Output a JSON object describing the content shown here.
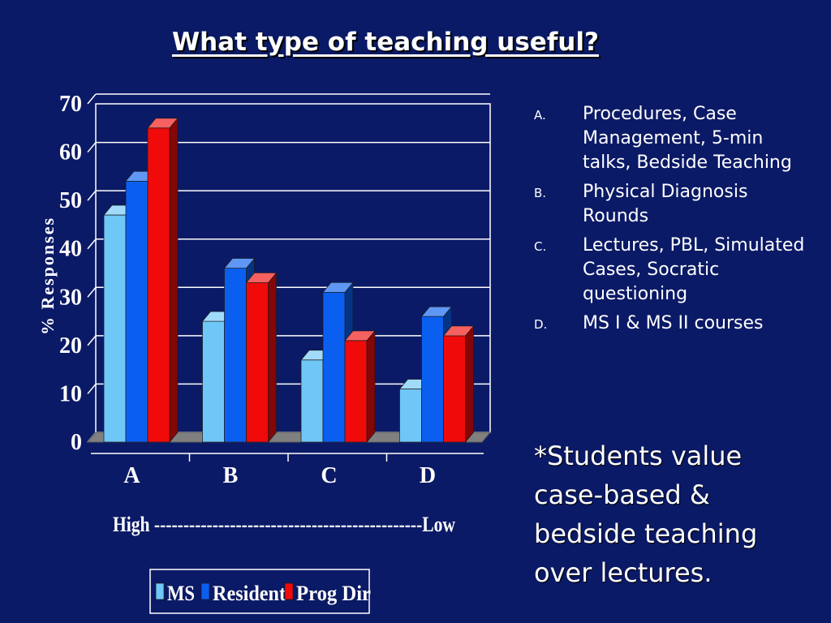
{
  "slide": {
    "title": "What type of teaching useful?",
    "bullets": [
      {
        "marker": "A.",
        "text": "Procedures, Case Management, 5-min talks, Bedside Teaching"
      },
      {
        "marker": "B.",
        "text": "Physical Diagnosis Rounds"
      },
      {
        "marker": "C.",
        "text": "Lectures, PBL, Simulated Cases, Socratic questioning"
      },
      {
        "marker": "D.",
        "text": "MS I & MS II courses"
      }
    ],
    "note": "*Students value case-based & bedside teaching over lectures."
  },
  "colors": {
    "background": "#0b1a66",
    "ms": "#6fc7f7",
    "resident": "#0a5ff0",
    "prog_dir": "#f00a0a",
    "floor": "#808080"
  },
  "chart_data": {
    "type": "bar",
    "categories": [
      "A",
      "B",
      "C",
      "D"
    ],
    "series": [
      {
        "name": "MS",
        "values": [
          47,
          25,
          17,
          11
        ]
      },
      {
        "name": "Resident",
        "values": [
          54,
          36,
          31,
          26
        ]
      },
      {
        "name": "Prog Dir",
        "values": [
          65,
          33,
          21,
          22
        ]
      }
    ],
    "ylabel": "% Responses",
    "xlabel": "High ----------------------------------------------Low",
    "ylim": [
      0,
      70
    ],
    "yticks": [
      0,
      10,
      20,
      30,
      40,
      50,
      60,
      70
    ],
    "grid": true,
    "legend": "bottom"
  }
}
